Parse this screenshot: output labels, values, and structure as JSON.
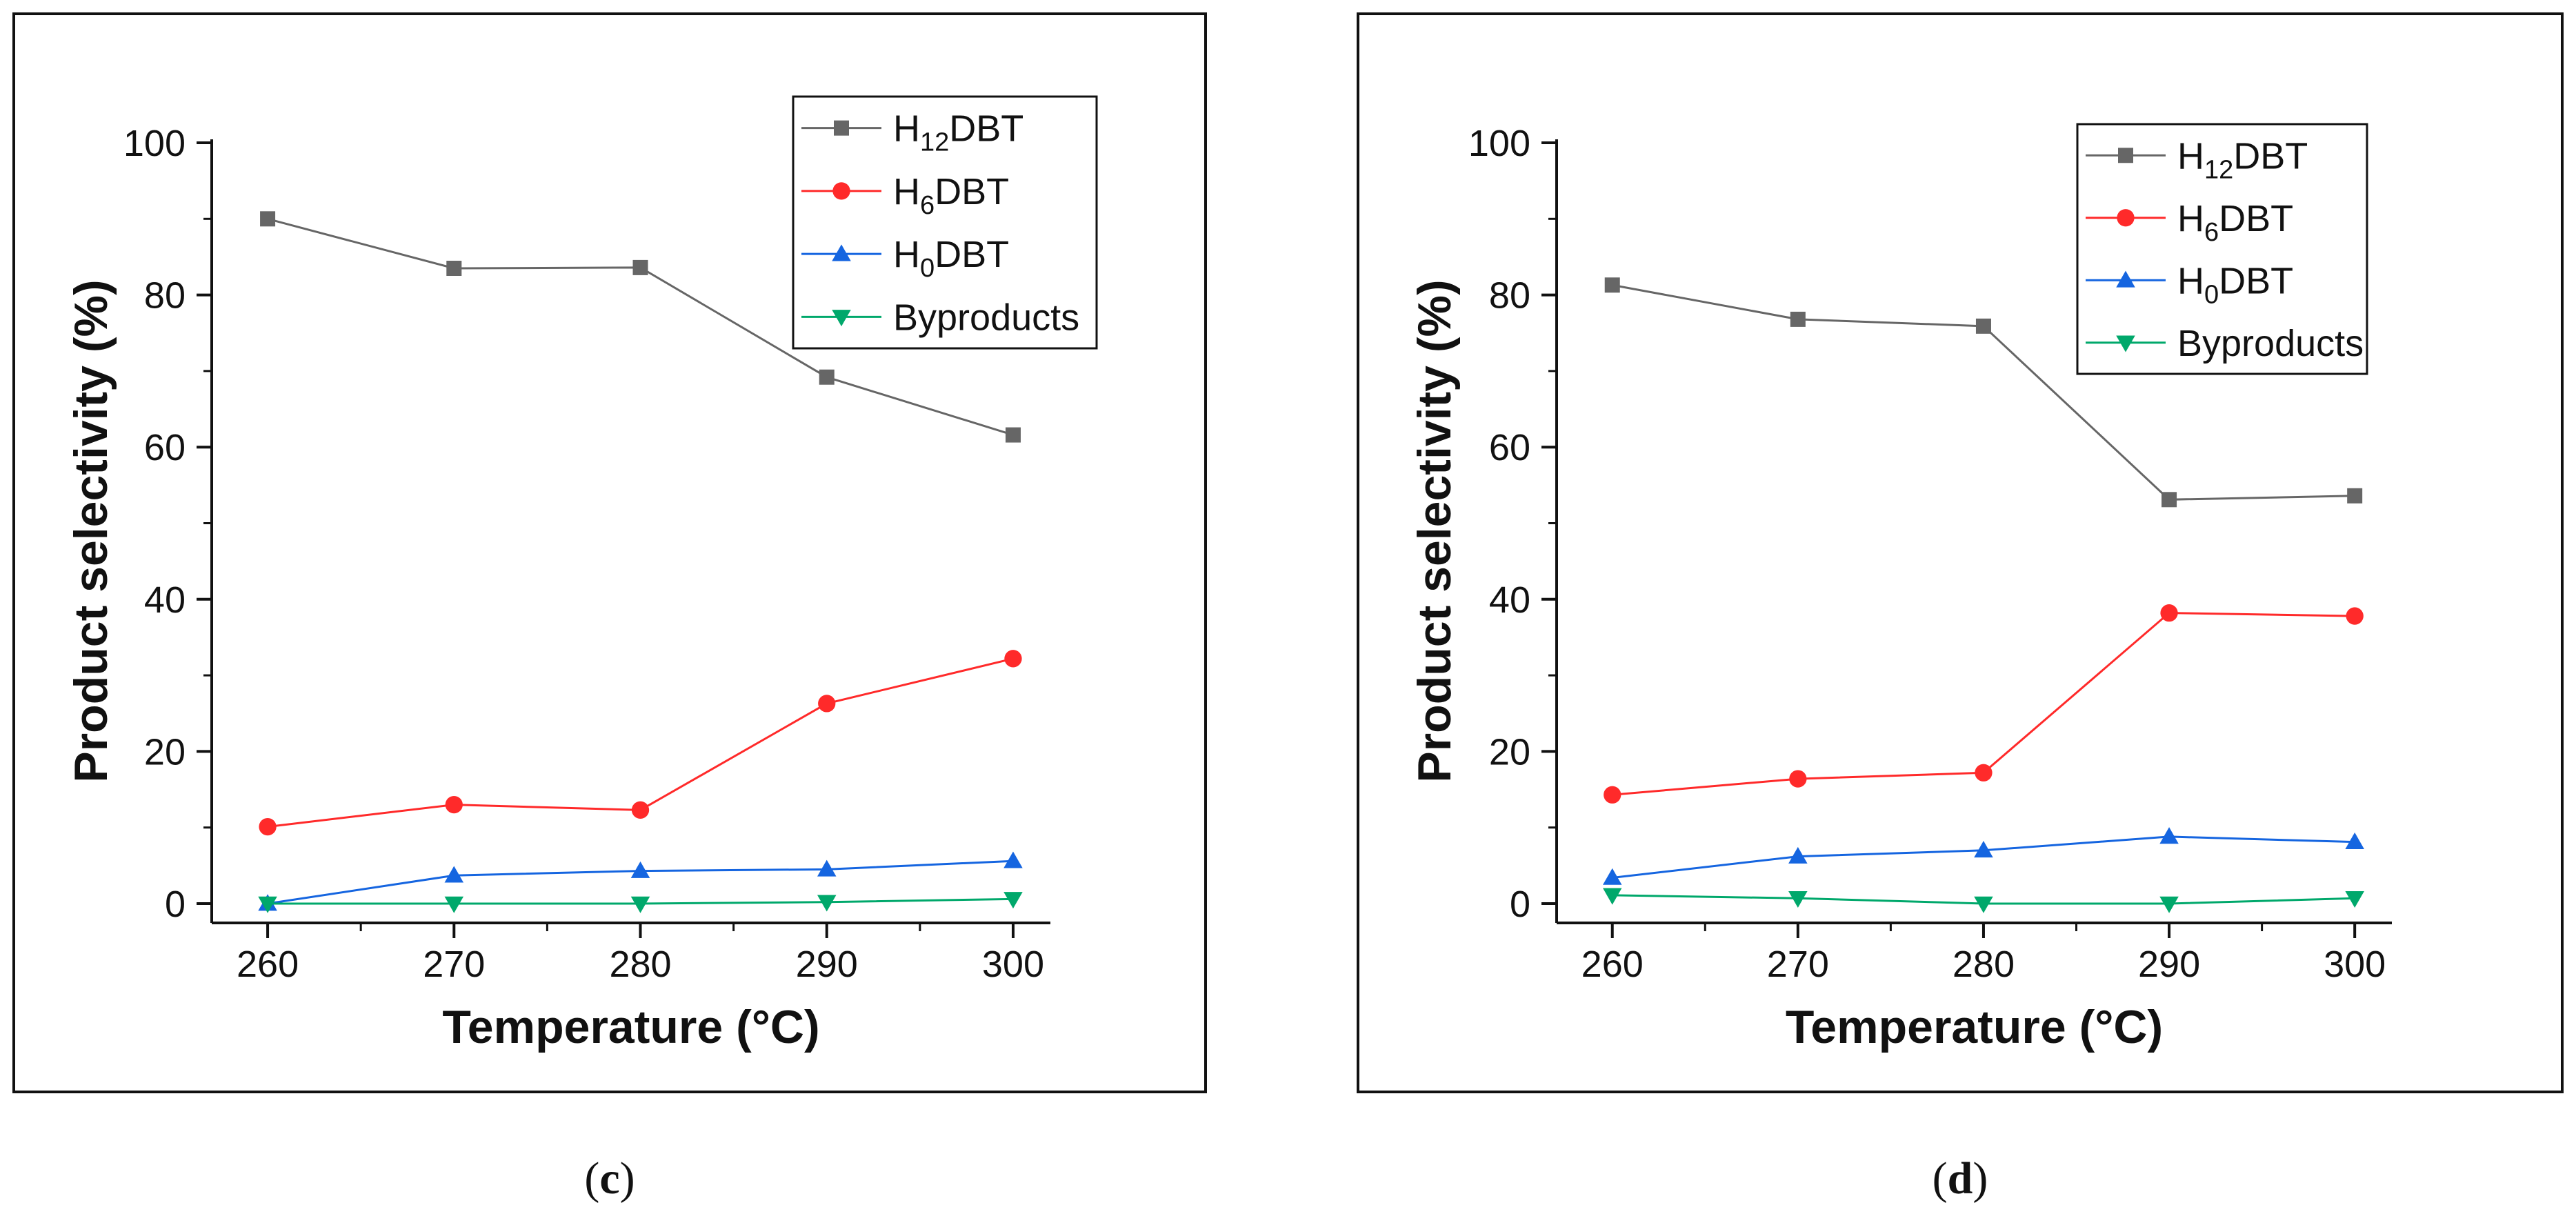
{
  "figure": {
    "legend_subscript_labels": [
      "12",
      "6",
      "0"
    ]
  },
  "chart_data": [
    {
      "type": "line",
      "panel_label": "(c)",
      "panel_letter": "c",
      "title": "",
      "xlabel": "Temperature (°C)",
      "ylabel": "Product selectivity (%)",
      "x": [
        260,
        270,
        280,
        290,
        300
      ],
      "xticks": [
        "260",
        "270",
        "280",
        "290",
        "300"
      ],
      "yticks": [
        "0",
        "20",
        "40",
        "60",
        "80",
        "100"
      ],
      "xlim": [
        257,
        302
      ],
      "ylim": [
        -2,
        102
      ],
      "legend_position": "top-right",
      "series": [
        {
          "name": "H12DBT",
          "label_prefix": "H",
          "label_sub": "12",
          "label_suffix": "DBT",
          "marker": "square",
          "color": "#666666",
          "values": [
            90.0,
            83.5,
            83.6,
            69.2,
            61.6
          ]
        },
        {
          "name": "H6DBT",
          "label_prefix": "H",
          "label_sub": "6",
          "label_suffix": "DBT",
          "marker": "circle",
          "color": "#ff2a2a",
          "values": [
            10.1,
            13.0,
            12.3,
            26.3,
            32.2
          ]
        },
        {
          "name": "H0DBT",
          "label_prefix": "H",
          "label_sub": "0",
          "label_suffix": "DBT",
          "marker": "triangle-up",
          "color": "#1565e0",
          "values": [
            0.0,
            3.7,
            4.3,
            4.5,
            5.6
          ]
        },
        {
          "name": "Byproducts",
          "label_prefix": "Byproducts",
          "label_sub": "",
          "label_suffix": "",
          "marker": "triangle-down",
          "color": "#00a86b",
          "values": [
            0.0,
            0.0,
            0.0,
            0.2,
            0.6
          ]
        }
      ]
    },
    {
      "type": "line",
      "panel_label": "(d)",
      "panel_letter": "d",
      "title": "",
      "xlabel": "Temperature (°C)",
      "ylabel": "Product selectivity (%)",
      "x": [
        260,
        270,
        280,
        290,
        300
      ],
      "xticks": [
        "260",
        "270",
        "280",
        "290",
        "300"
      ],
      "yticks": [
        "0",
        "20",
        "40",
        "60",
        "80",
        "100"
      ],
      "xlim": [
        257,
        302
      ],
      "ylim": [
        -2,
        102
      ],
      "legend_position": "top-right",
      "series": [
        {
          "name": "H12DBT",
          "label_prefix": "H",
          "label_sub": "12",
          "label_suffix": "DBT",
          "marker": "square",
          "color": "#666666",
          "values": [
            81.3,
            76.8,
            75.9,
            53.1,
            53.6
          ]
        },
        {
          "name": "H6DBT",
          "label_prefix": "H",
          "label_sub": "6",
          "label_suffix": "DBT",
          "marker": "circle",
          "color": "#ff2a2a",
          "values": [
            14.3,
            16.4,
            17.2,
            38.2,
            37.8
          ]
        },
        {
          "name": "H0DBT",
          "label_prefix": "H",
          "label_sub": "0",
          "label_suffix": "DBT",
          "marker": "triangle-up",
          "color": "#1565e0",
          "values": [
            3.4,
            6.2,
            7.0,
            8.8,
            8.1
          ]
        },
        {
          "name": "Byproducts",
          "label_prefix": "Byproducts",
          "label_sub": "",
          "label_suffix": "",
          "marker": "triangle-down",
          "color": "#00a86b",
          "values": [
            1.1,
            0.7,
            0.0,
            0.0,
            0.7
          ]
        }
      ]
    }
  ]
}
